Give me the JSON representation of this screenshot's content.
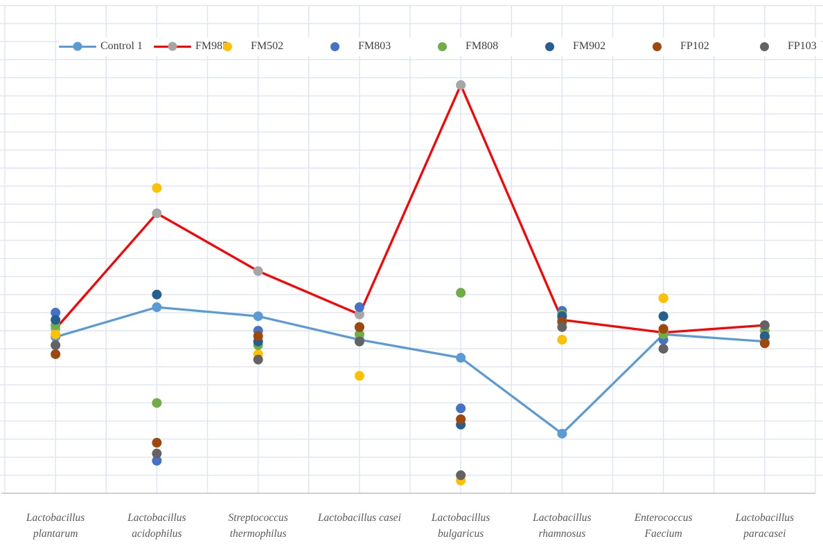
{
  "chart_data": {
    "type": "scatter",
    "title": "",
    "xlabel": "",
    "ylabel": "",
    "y_axis_labels_visible": false,
    "unit_note": "values in horizontal-gridline units above x-axis (no numeric y-axis shown)",
    "ylim": [
      0,
      27
    ],
    "grid": "on",
    "legend_position": "top",
    "categories": [
      "Lactobacillus plantarum",
      "Lactobacillus acidophilus",
      "Streptococcus thermophilus",
      "Lactobacillus casei",
      "Lactobacillus bulgaricus",
      "Lactobacillus rhamnosus",
      "Enterococcus Faecium",
      "Lactobacillus paracasei"
    ],
    "category_label_lines": [
      [
        "Lactobacillus",
        "plantarum"
      ],
      [
        "Lactobacillus",
        "acidophilus"
      ],
      [
        "Streptococcus",
        "thermophilus"
      ],
      [
        "Lactobacillus casei"
      ],
      [
        "Lactobacillus",
        "bulgaricus"
      ],
      [
        "Lactobacillus",
        "rhamnosus"
      ],
      [
        "Enterococcus",
        "Faecium"
      ],
      [
        "Lactobacillus",
        "paracasei"
      ]
    ],
    "series": [
      {
        "name": "Control 1",
        "style": "line-marker",
        "line_color": "#5B9BD5",
        "marker_color": "#5B9BD5",
        "values": [
          8.65,
          10.3,
          9.8,
          8.5,
          7.5,
          3.3,
          8.8,
          8.4
        ]
      },
      {
        "name": "FM985",
        "style": "line-marker",
        "line_color": "#FF0000",
        "marker_color": "#A6A6A6",
        "values": [
          9.1,
          15.5,
          12.3,
          9.9,
          22.6,
          9.6,
          8.9,
          9.3
        ]
      },
      {
        "name": "FM502",
        "style": "marker",
        "marker_color": "#FFC000",
        "values": [
          8.8,
          16.9,
          7.7,
          6.5,
          0.7,
          8.5,
          10.8,
          8.6
        ]
      },
      {
        "name": "FM803",
        "style": "marker",
        "marker_color": "#4472C4",
        "values": [
          10.0,
          1.8,
          9.0,
          10.3,
          4.7,
          10.1,
          8.5,
          8.7
        ]
      },
      {
        "name": "FM808",
        "style": "marker",
        "marker_color": "#70AD47",
        "values": [
          9.3,
          5.0,
          8.2,
          8.8,
          11.1,
          9.9,
          8.8,
          9.0
        ]
      },
      {
        "name": "FM902",
        "style": "marker",
        "marker_color": "#255E91",
        "values": [
          9.6,
          11.0,
          8.4,
          9.2,
          3.8,
          9.8,
          9.8,
          8.7
        ]
      },
      {
        "name": "FP102",
        "style": "marker",
        "marker_color": "#9E480E",
        "values": [
          7.7,
          2.8,
          8.7,
          9.2,
          4.1,
          9.5,
          9.1,
          8.3
        ]
      },
      {
        "name": "FP103",
        "style": "marker",
        "marker_color": "#636363",
        "values": [
          8.2,
          2.2,
          7.4,
          8.4,
          1.0,
          9.2,
          8.0,
          9.3
        ]
      }
    ]
  },
  "legend": {
    "items": [
      "Control 1",
      "FM985",
      "FM502",
      "FM803",
      "FM808",
      "FM902",
      "FP102",
      "FP103"
    ]
  },
  "colors": {
    "gridline": "#DDE4F2",
    "axis_line": "#BFBFBF",
    "legend_text": "#404040",
    "axis_label_text": "#595959",
    "background": "#FFFFFF"
  }
}
